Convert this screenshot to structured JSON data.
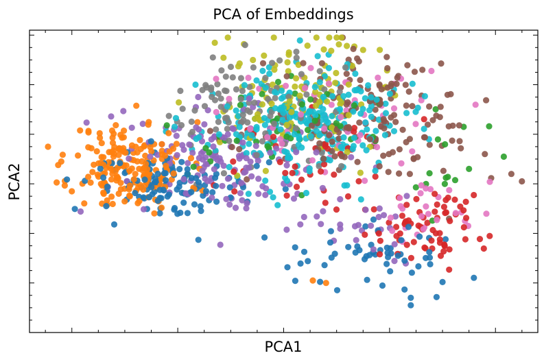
{
  "chart_data": {
    "type": "scatter",
    "title": "PCA of Embeddings",
    "xlabel": "PCA1",
    "ylabel": "PCA2",
    "xlim": [
      -4.8,
      4.8
    ],
    "ylim": [
      -3.0,
      3.1
    ],
    "ticks_labeled": false,
    "legend": "none",
    "colors": {
      "blue": "#1f77b4",
      "orange": "#ff7f0e",
      "green": "#2ca02c",
      "red": "#d62728",
      "purple": "#9467bd",
      "brown": "#8c564b",
      "pink": "#e377c2",
      "gray": "#7f7f7f",
      "olive": "#bcbd22",
      "cyan": "#17becf"
    },
    "clusters": [
      {
        "color": "orange",
        "n": 190,
        "cx": -2.9,
        "cy": 0.35,
        "sx": 0.55,
        "sy": 0.45,
        "seed": 11
      },
      {
        "color": "blue",
        "n": 120,
        "cx": -2.1,
        "cy": -0.05,
        "sx": 0.75,
        "sy": 0.35,
        "seed": 12
      },
      {
        "color": "blue",
        "n": 55,
        "cx": 1.6,
        "cy": -1.45,
        "sx": 0.85,
        "sy": 0.35,
        "seed": 13
      },
      {
        "color": "purple",
        "n": 140,
        "cx": -1.1,
        "cy": 0.55,
        "sx": 0.9,
        "sy": 0.55,
        "seed": 14
      },
      {
        "color": "purple",
        "n": 30,
        "cx": 1.5,
        "cy": -0.7,
        "sx": 0.7,
        "sy": 0.4,
        "seed": 15
      },
      {
        "color": "red",
        "n": 70,
        "cx": 2.7,
        "cy": -0.85,
        "sx": 0.55,
        "sy": 0.35,
        "seed": 16
      },
      {
        "color": "red",
        "n": 40,
        "cx": 0.3,
        "cy": 0.35,
        "sx": 0.9,
        "sy": 0.45,
        "seed": 17
      },
      {
        "color": "pink",
        "n": 60,
        "cx": 1.0,
        "cy": 1.25,
        "sx": 1.0,
        "sy": 0.6,
        "seed": 18
      },
      {
        "color": "pink",
        "n": 25,
        "cx": 2.6,
        "cy": -0.45,
        "sx": 0.45,
        "sy": 0.3,
        "seed": 19
      },
      {
        "color": "gray",
        "n": 110,
        "cx": -0.6,
        "cy": 1.55,
        "sx": 0.8,
        "sy": 0.65,
        "seed": 20
      },
      {
        "color": "brown",
        "n": 150,
        "cx": 1.7,
        "cy": 1.3,
        "sx": 1.0,
        "sy": 0.65,
        "seed": 21
      },
      {
        "color": "olive",
        "n": 110,
        "cx": 0.25,
        "cy": 1.85,
        "sx": 0.75,
        "sy": 0.6,
        "seed": 22
      },
      {
        "color": "cyan",
        "n": 260,
        "cx": 0.35,
        "cy": 1.2,
        "sx": 0.95,
        "sy": 0.55,
        "seed": 23
      },
      {
        "color": "green",
        "n": 55,
        "cx": -0.2,
        "cy": 1.05,
        "sx": 1.0,
        "sy": 0.55,
        "seed": 24
      },
      {
        "color": "green",
        "n": 12,
        "cx": 3.3,
        "cy": 0.05,
        "sx": 0.5,
        "sy": 0.4,
        "seed": 25
      }
    ],
    "outliers": [
      {
        "x": 4.3,
        "y": 0.2,
        "color": "brown"
      },
      {
        "x": 4.5,
        "y": 0.05,
        "color": "brown"
      },
      {
        "x": 3.8,
        "y": 0.6,
        "color": "brown"
      },
      {
        "x": 3.5,
        "y": 0.3,
        "color": "green"
      },
      {
        "x": 3.4,
        "y": 1.15,
        "color": "green"
      },
      {
        "x": 0.1,
        "y": 2.65,
        "color": "olive"
      },
      {
        "x": 1.5,
        "y": 2.7,
        "color": "olive"
      },
      {
        "x": 0.55,
        "y": -1.95,
        "color": "orange"
      },
      {
        "x": 0.8,
        "y": -2.0,
        "color": "orange"
      },
      {
        "x": 2.4,
        "y": -2.45,
        "color": "blue"
      },
      {
        "x": 2.4,
        "y": -2.3,
        "color": "blue"
      },
      {
        "x": -4.2,
        "y": 0.45,
        "color": "orange"
      }
    ]
  }
}
